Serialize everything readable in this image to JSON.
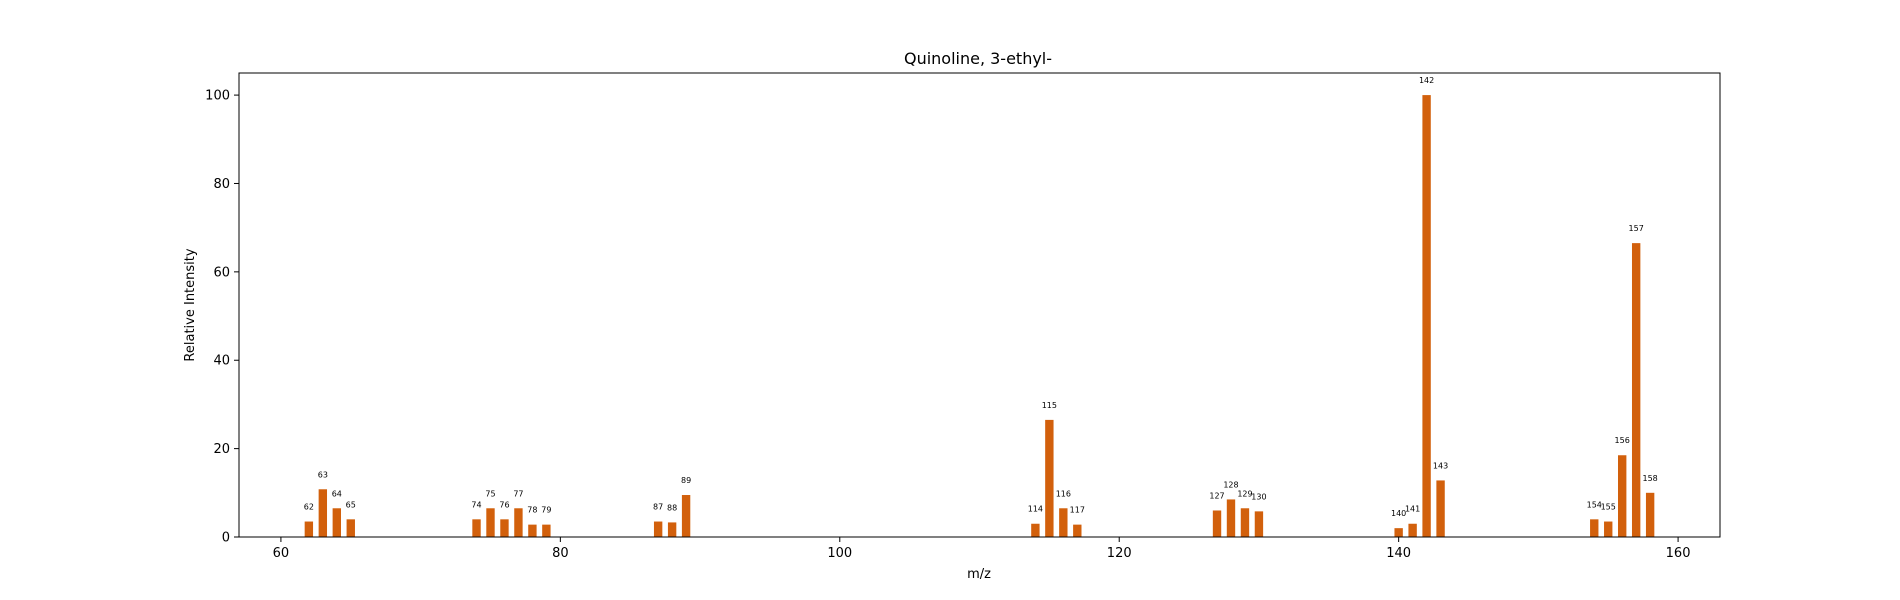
{
  "chart_data": {
    "type": "bar",
    "title": "Quinoline, 3-ethyl-",
    "xlabel": "m/z",
    "ylabel": "Relative Intensity",
    "xlim": [
      57,
      163
    ],
    "ylim": [
      0,
      105
    ],
    "xticks": [
      60,
      80,
      100,
      120,
      140,
      160
    ],
    "yticks": [
      0,
      20,
      40,
      60,
      80,
      100
    ],
    "grid": false,
    "bar_color": "#d2600c",
    "x": [
      62,
      63,
      64,
      65,
      74,
      75,
      76,
      77,
      78,
      79,
      87,
      88,
      89,
      114,
      115,
      116,
      117,
      127,
      128,
      129,
      130,
      140,
      141,
      142,
      143,
      154,
      155,
      156,
      157,
      158
    ],
    "values": [
      3.5,
      10.8,
      6.5,
      4.0,
      4.0,
      6.5,
      4.0,
      6.5,
      2.8,
      2.8,
      3.5,
      3.3,
      9.5,
      3.0,
      26.5,
      6.5,
      2.8,
      6.0,
      8.5,
      6.5,
      5.8,
      2.0,
      3.0,
      100,
      12.8,
      4.0,
      3.5,
      18.5,
      66.5,
      10.0
    ],
    "labels": [
      "62",
      "63",
      "64",
      "65",
      "74",
      "75",
      "76",
      "77",
      "78",
      "79",
      "87",
      "88",
      "89",
      "114",
      "115",
      "116",
      "117",
      "127",
      "128",
      "129",
      "130",
      "140",
      "141",
      "142",
      "143",
      "154",
      "155",
      "156",
      "157",
      "158"
    ]
  }
}
